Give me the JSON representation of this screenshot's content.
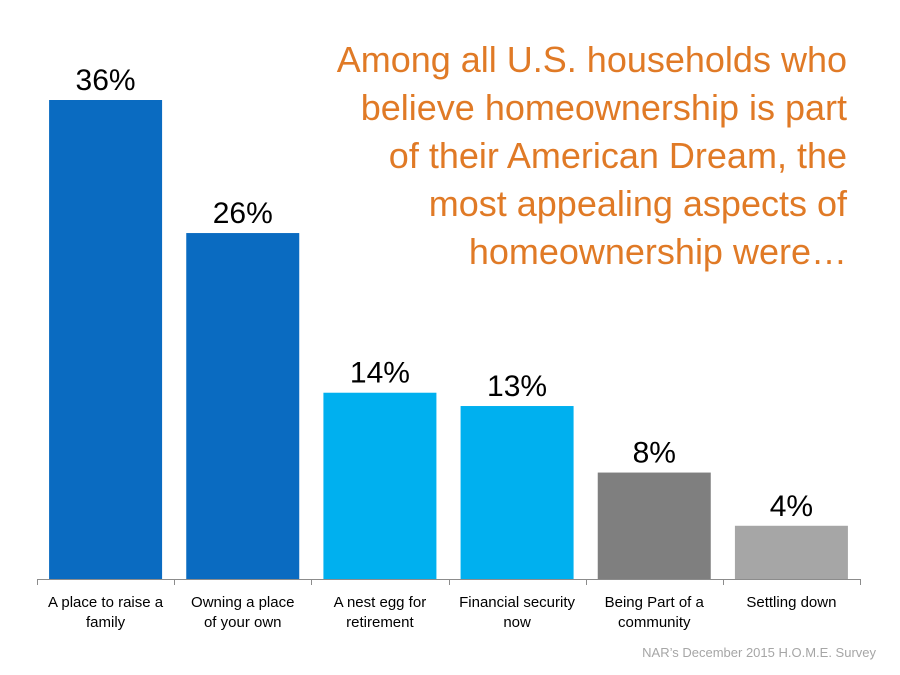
{
  "chart_data": {
    "type": "bar",
    "title": "Among all U.S. households who believe homeownership is part of their American Dream, the most appealing aspects of homeownership were…",
    "xlabel": "",
    "ylabel": "",
    "ylim": [
      0,
      36
    ],
    "grid": false,
    "legend": "none",
    "categories": [
      [
        "A place to raise a",
        "family"
      ],
      [
        "Owning a place",
        "of your own"
      ],
      [
        "A nest egg for",
        "retirement"
      ],
      [
        "Financial security",
        "now"
      ],
      [
        "Being Part of a",
        "community"
      ],
      [
        "Settling down"
      ]
    ],
    "values": [
      36,
      26,
      14,
      13,
      8,
      4
    ],
    "value_labels": [
      "36%",
      "26%",
      "14%",
      "13%",
      "8%",
      "4%"
    ],
    "colors": [
      "#0a6bc1",
      "#0a6bc1",
      "#00b0ef",
      "#00b0ef",
      "#7f7f7f",
      "#a6a6a6"
    ]
  },
  "title_lines": [
    "Among all U.S. households who",
    "believe homeownership is part",
    "of their American Dream, the",
    "most appealing aspects of",
    "homeownership were…"
  ],
  "source": "NAR’s December 2015 H.O.M.E. Survey"
}
